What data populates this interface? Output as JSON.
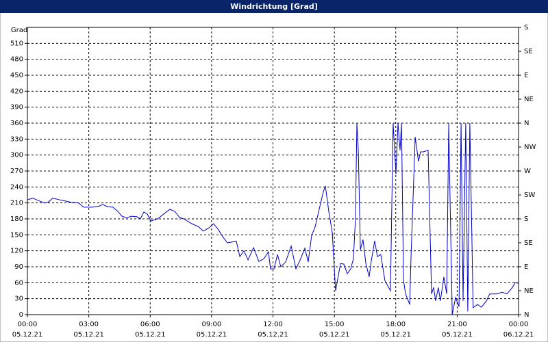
{
  "chart_data": {
    "type": "line",
    "title": "Windrichtung [Grad]",
    "y_label": "Grad",
    "x": [
      0,
      0.27,
      0.5,
      0.84,
      1.0,
      1.24,
      1.67,
      2.18,
      2.51,
      2.74,
      3.18,
      3.51,
      3.68,
      3.92,
      4.18,
      4.42,
      4.62,
      4.85,
      5.09,
      5.36,
      5.52,
      5.69,
      5.86,
      6.03,
      6.36,
      6.69,
      6.96,
      7.2,
      7.43,
      7.7,
      8.03,
      8.37,
      8.6,
      8.87,
      9.1,
      9.31,
      9.54,
      9.77,
      10.21,
      10.38,
      10.58,
      10.78,
      11.05,
      11.31,
      11.55,
      11.78,
      11.88,
      12.05,
      12.22,
      12.38,
      12.62,
      12.89,
      13.12,
      13.32,
      13.56,
      13.72,
      13.89,
      14.06,
      14.23,
      14.46,
      14.56,
      14.73,
      14.9,
      15.06,
      15.3,
      15.46,
      15.63,
      15.8,
      15.93,
      16.03,
      16.1,
      16.17,
      16.27,
      16.4,
      16.54,
      16.7,
      16.8,
      16.97,
      17.1,
      17.27,
      17.47,
      17.74,
      17.87,
      18.01,
      18.11,
      18.21,
      18.28,
      18.38,
      18.48,
      18.68,
      18.74,
      18.95,
      19.11,
      19.21,
      19.35,
      19.58,
      19.75,
      19.85,
      19.95,
      20.08,
      20.18,
      20.35,
      20.49,
      20.59,
      20.66,
      20.76,
      20.92,
      21.09,
      21.19,
      21.29,
      21.42,
      21.52,
      21.62,
      21.78,
      21.99,
      22.19,
      22.43,
      22.59,
      22.93,
      23.2,
      23.43,
      23.7,
      23.83,
      24.0
    ],
    "series": [
      {
        "name": "Windrichtung",
        "color": "#0000c8",
        "values": [
          216,
          219,
          215,
          210,
          211,
          219,
          215,
          211,
          210,
          202,
          202,
          204,
          207,
          203,
          202,
          194,
          185,
          182,
          185,
          184,
          180,
          193,
          189,
          176,
          180,
          190,
          198,
          194,
          183,
          179,
          171,
          165,
          157,
          163,
          171,
          161,
          147,
          135,
          138,
          109,
          120,
          103,
          126,
          100,
          105,
          118,
          86,
          86,
          113,
          90,
          99,
          129,
          86,
          102,
          125,
          99,
          149,
          165,
          193,
          231,
          242,
          193,
          154,
          45,
          96,
          95,
          77,
          86,
          105,
          180,
          360,
          309,
          122,
          141,
          96,
          71,
          100,
          139,
          109,
          113,
          64,
          45,
          360,
          264,
          360,
          309,
          360,
          64,
          39,
          19,
          103,
          334,
          288,
          306,
          306,
          309,
          39,
          51,
          26,
          51,
          26,
          71,
          39,
          360,
          206,
          0,
          32,
          15,
          360,
          26,
          360,
          6,
          360,
          13,
          19,
          14,
          26,
          39,
          39,
          42,
          39,
          51,
          60,
          59
        ]
      }
    ],
    "xlim": [
      0,
      24
    ],
    "xticks": [
      {
        "value": 0,
        "label": "00:00",
        "date": "05.12.21"
      },
      {
        "value": 3,
        "label": "03:00",
        "date": "05.12.21"
      },
      {
        "value": 6,
        "label": "06:00",
        "date": "05.12.21"
      },
      {
        "value": 9,
        "label": "09:00",
        "date": "05.12.21"
      },
      {
        "value": 12,
        "label": "12:00",
        "date": "05.12.21"
      },
      {
        "value": 15,
        "label": "15:00",
        "date": "05.12.21"
      },
      {
        "value": 18,
        "label": "18:00",
        "date": "05.12.21"
      },
      {
        "value": 21,
        "label": "21:00",
        "date": "05.12.21"
      },
      {
        "value": 24,
        "label": "00:00",
        "date": "06.12.21"
      }
    ],
    "ylim": [
      0,
      540
    ],
    "yticks": [
      0,
      30,
      60,
      90,
      120,
      150,
      180,
      210,
      240,
      270,
      300,
      330,
      360,
      390,
      420,
      450,
      480,
      510
    ],
    "y2lim": [
      0,
      540
    ],
    "y2ticks": [
      {
        "value": 0,
        "label": "N"
      },
      {
        "value": 45,
        "label": "NE"
      },
      {
        "value": 90,
        "label": "E"
      },
      {
        "value": 135,
        "label": "SE"
      },
      {
        "value": 180,
        "label": "S"
      },
      {
        "value": 225,
        "label": "SW"
      },
      {
        "value": 270,
        "label": "W"
      },
      {
        "value": 315,
        "label": "NW"
      },
      {
        "value": 360,
        "label": "N"
      },
      {
        "value": 405,
        "label": "NE"
      },
      {
        "value": 450,
        "label": "E"
      },
      {
        "value": 495,
        "label": "SE"
      },
      {
        "value": 540,
        "label": "S"
      }
    ],
    "grid": true
  }
}
